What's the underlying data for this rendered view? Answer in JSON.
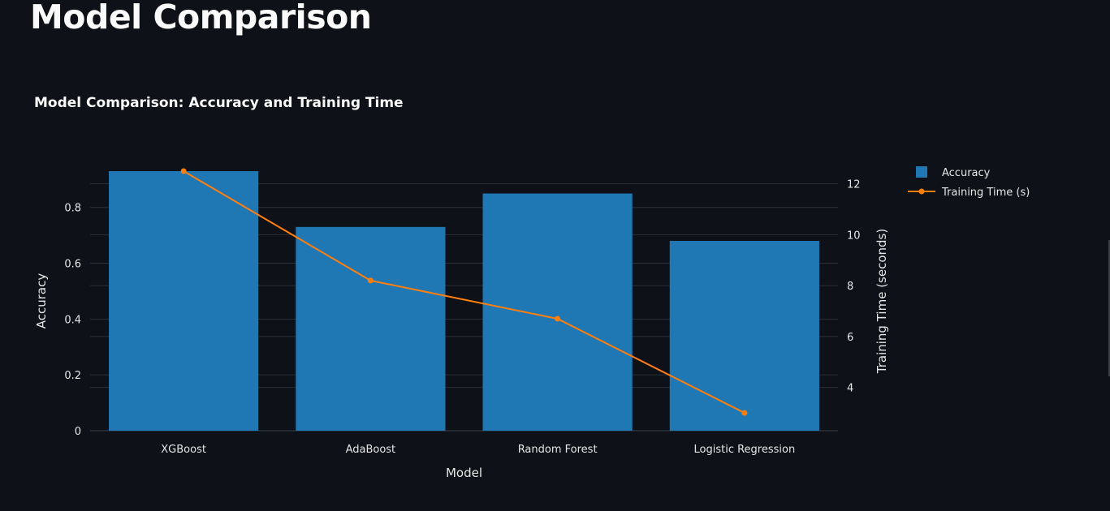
{
  "page": {
    "title": "Model Comparison"
  },
  "chart_data": {
    "type": "bar",
    "title": "Model Comparison: Accuracy and Training Time",
    "xlabel": "Model",
    "ylabel": "Accuracy",
    "y2label": "Training Time (seconds)",
    "categories": [
      "XGBoost",
      "AdaBoost",
      "Random Forest",
      "Logistic Regression"
    ],
    "series": [
      {
        "name": "Accuracy",
        "type": "bar",
        "axis": "left",
        "color": "#1f77b4",
        "values": [
          0.93,
          0.73,
          0.85,
          0.68
        ]
      },
      {
        "name": "Training Time (s)",
        "type": "line",
        "axis": "right",
        "color": "#ff7f0e",
        "values": [
          12.5,
          8.2,
          6.7,
          3.0
        ]
      }
    ],
    "ylim": [
      0,
      0.93
    ],
    "y2lim": [
      2.3,
      12.5
    ],
    "yticks": [
      0,
      0.2,
      0.4,
      0.6,
      0.8
    ],
    "ytick_labels": [
      "0",
      "0.2",
      "0.4",
      "0.6",
      "0.8"
    ],
    "y2ticks": [
      4,
      6,
      8,
      10,
      12
    ],
    "y2tick_labels": [
      "4",
      "6",
      "8",
      "10",
      "12"
    ],
    "grid": true,
    "legend_position": "top-right outside"
  }
}
